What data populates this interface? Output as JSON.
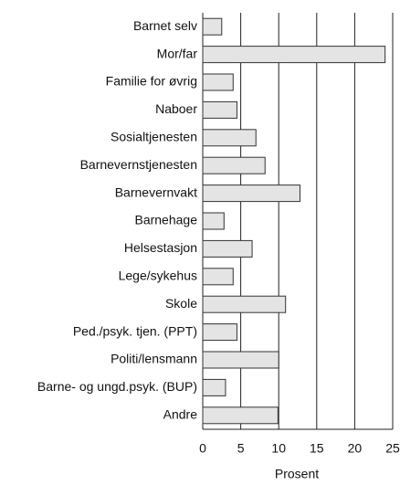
{
  "chart_data": {
    "type": "barh",
    "categories": [
      "Barnet selv",
      "Mor/far",
      "Familie for øvrig",
      "Naboer",
      "Sosialtjenesten",
      "Barnevernstjenesten",
      "Barnevernvakt",
      "Barnehage",
      "Helsestasjon",
      "Lege/sykehus",
      "Skole",
      "Ped./psyk. tjen. (PPT)",
      "Politi/lensmann",
      "Barne- og ungd.psyk. (BUP)",
      "Andre"
    ],
    "values": [
      2.5,
      24,
      4,
      4.5,
      7,
      8.2,
      12.8,
      2.8,
      6.5,
      4,
      10.9,
      4.5,
      10,
      3,
      9.9
    ],
    "color": "#e4e4e4",
    "xlabel": "Prosent",
    "xlim": [
      0,
      25
    ],
    "xticks": [
      0,
      5,
      10,
      15,
      20,
      25
    ],
    "grid": true
  }
}
